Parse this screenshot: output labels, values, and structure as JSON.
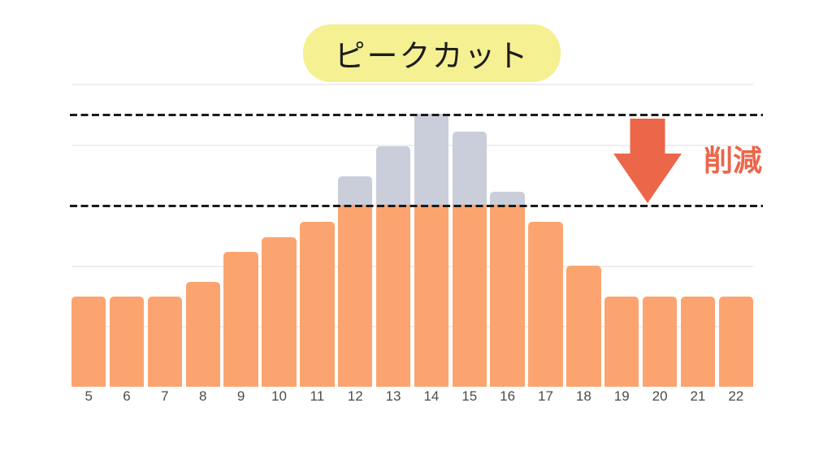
{
  "title": {
    "label": "ピークカット",
    "bg_color": "#F5F091",
    "text_color": "#1c1c1c"
  },
  "annotation": {
    "label": "削減",
    "color": "#EC664A",
    "arrow_icon": "down-arrow-icon",
    "arrow_color": "#EC664A"
  },
  "chart_data": {
    "type": "bar",
    "stacked": true,
    "title": "ピークカット",
    "categories": [
      "5",
      "6",
      "7",
      "8",
      "9",
      "10",
      "11",
      "12",
      "13",
      "14",
      "15",
      "16",
      "17",
      "18",
      "19",
      "20",
      "21",
      "22"
    ],
    "series": [
      {
        "id": "after-peak-cut",
        "color": "#FCA46F",
        "values": [
          1.49,
          1.49,
          1.49,
          1.73,
          2.23,
          2.47,
          2.72,
          3,
          3,
          3,
          3,
          3,
          2.72,
          2,
          1.49,
          1.49,
          1.49,
          1.49
        ]
      },
      {
        "id": "cut-amount",
        "color": "#C9CEDA",
        "values": [
          0,
          0,
          0,
          0,
          0,
          0,
          0,
          0.47,
          0.97,
          1.5,
          1.21,
          0.22,
          0,
          0,
          0,
          0,
          0,
          0
        ]
      }
    ],
    "reference_lines": [
      {
        "id": "peak-cut-level",
        "value": 3.0,
        "style": "dashed",
        "color": "#1b1b1b"
      },
      {
        "id": "original-peak-level",
        "value": 4.5,
        "style": "dashed",
        "color": "#1b1b1b"
      }
    ],
    "gridline_values": [
      1,
      2,
      3,
      4,
      5
    ],
    "ylim": [
      0,
      5.2
    ],
    "grid": true,
    "legend": "none",
    "annotation_label": "削減"
  }
}
